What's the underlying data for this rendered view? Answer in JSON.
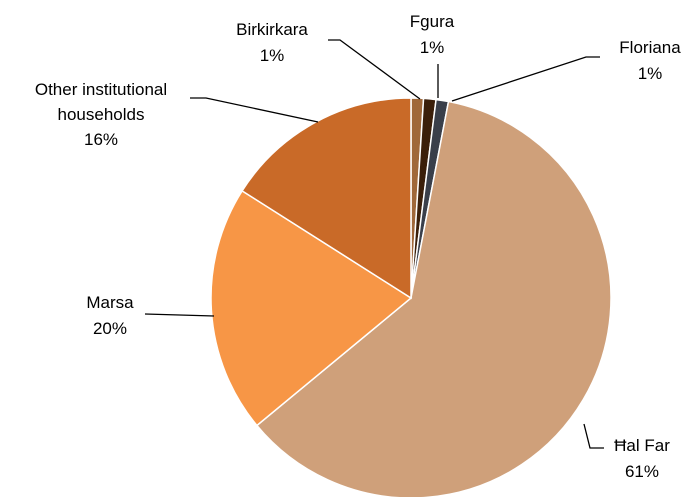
{
  "chart_data": {
    "type": "pie",
    "categories": [
      "Birkirkara",
      "Fgura",
      "Floriana",
      "Ħal Far",
      "Marsa",
      "Other institutional households"
    ],
    "values": [
      1,
      1,
      1,
      61,
      20,
      16
    ],
    "value_labels": [
      "1%",
      "1%",
      "1%",
      "61%",
      "20%",
      "16%"
    ],
    "colors": [
      "#a0683a",
      "#3b1f0a",
      "#3a3f4a",
      "#cfa07a",
      "#f79646",
      "#c96a28"
    ]
  }
}
